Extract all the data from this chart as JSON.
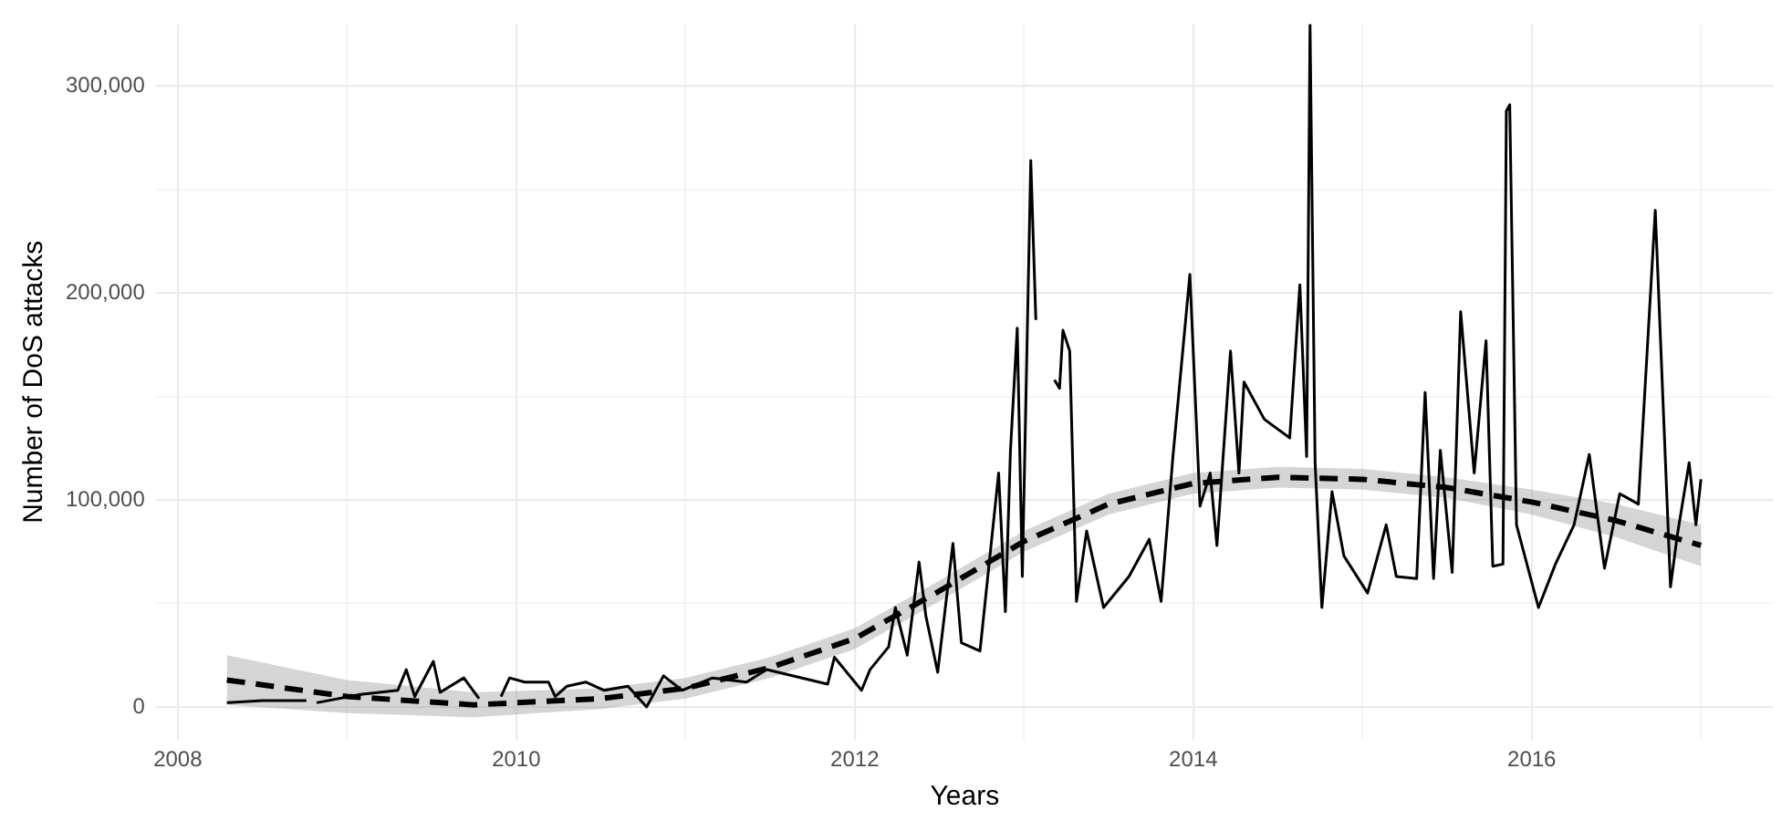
{
  "chart_data": {
    "type": "line",
    "xlabel": "Years",
    "ylabel": "Number of DoS attacks",
    "xlim": [
      2007.87,
      2017.43
    ],
    "ylim": [
      -16000,
      330000
    ],
    "xticks": [
      2008,
      {
        "value": 2009,
        "label": null
      },
      2010,
      {
        "value": 2011,
        "label": null
      },
      2012,
      {
        "value": 2013,
        "label": null
      },
      2014,
      {
        "value": 2015,
        "label": null
      },
      2016,
      {
        "value": 2017,
        "label": null
      }
    ],
    "yticks": [
      {
        "value": 0,
        "label": "0"
      },
      {
        "value": 50000,
        "label": null
      },
      {
        "value": 100000,
        "label": "100,000"
      },
      {
        "value": 150000,
        "label": null
      },
      {
        "value": 200000,
        "label": "200,000"
      },
      {
        "value": 250000,
        "label": null
      },
      {
        "value": 300000,
        "label": "300,000"
      }
    ],
    "grid": true,
    "legend": false,
    "marker": "none",
    "series": [
      {
        "color": "#000000",
        "line_style": "solid",
        "x": [
          2008.29,
          2008.5,
          2008.76,
          2008.79,
          2008.82,
          2009.08,
          2009.3,
          2009.35,
          2009.4,
          2009.51,
          2009.55,
          2009.69,
          2009.78,
          2009.82,
          2009.91,
          2009.96,
          2010.05,
          2010.19,
          2010.23,
          2010.3,
          2010.41,
          2010.52,
          2010.66,
          2010.77,
          2010.87,
          2010.98,
          2011.16,
          2011.36,
          2011.48,
          2011.84,
          2011.88,
          2012.04,
          2012.09,
          2012.2,
          2012.24,
          2012.31,
          2012.38,
          2012.42,
          2012.49,
          2012.58,
          2012.63,
          2012.74,
          2012.85,
          2012.89,
          2012.92,
          2012.96,
          2012.99,
          2013.04,
          2013.07,
          2013.12,
          2013.18,
          2013.21,
          2013.23,
          2013.27,
          2013.31,
          2013.37,
          2013.47,
          2013.62,
          2013.74,
          2013.81,
          2013.88,
          2013.98,
          2014.04,
          2014.1,
          2014.14,
          2014.22,
          2014.27,
          2014.3,
          2014.42,
          2014.57,
          2014.63,
          2014.67,
          2014.69,
          2014.72,
          2014.76,
          2014.82,
          2014.89,
          2015.03,
          2015.14,
          2015.2,
          2015.32,
          2015.37,
          2015.42,
          2015.46,
          2015.53,
          2015.58,
          2015.66,
          2015.73,
          2015.77,
          2015.83,
          2015.85,
          2015.87,
          2015.91,
          2016.04,
          2016.14,
          2016.25,
          2016.34,
          2016.43,
          2016.52,
          2016.63,
          2016.73,
          2016.82,
          2016.86,
          2016.93,
          2016.97,
          2017.0
        ],
        "values": [
          2000,
          3000,
          3000,
          null,
          2000,
          6000,
          8000,
          18000,
          5000,
          22000,
          7000,
          14000,
          4000,
          null,
          5000,
          14000,
          12000,
          12000,
          5000,
          10000,
          12000,
          8000,
          10000,
          0,
          15000,
          8000,
          14000,
          12000,
          18000,
          11000,
          24000,
          8000,
          18000,
          29000,
          48000,
          25000,
          70000,
          44000,
          16700,
          79000,
          31000,
          27000,
          113000,
          46000,
          124000,
          183000,
          63000,
          264000,
          187000,
          null,
          158000,
          154000,
          182000,
          172000,
          51000,
          85000,
          48000,
          63000,
          81000,
          51000,
          121000,
          209000,
          97000,
          113000,
          78000,
          172000,
          113000,
          157000,
          139000,
          130000,
          204000,
          121000,
          330000,
          118000,
          48000,
          104000,
          73000,
          55000,
          88000,
          63000,
          62000,
          152000,
          62000,
          124000,
          65000,
          191000,
          113000,
          177000,
          68000,
          69000,
          288000,
          291000,
          88000,
          48000,
          69000,
          88000,
          122000,
          67000,
          103000,
          98000,
          240000,
          58000,
          83000,
          118000,
          88000,
          110000
        ]
      },
      {
        "color": "#000000",
        "line_style": "dashed",
        "x": [
          2008.29,
          2009.0,
          2009.75,
          2010.5,
          2011.0,
          2011.5,
          2012.0,
          2012.5,
          2013.0,
          2013.5,
          2014.0,
          2014.5,
          2015.0,
          2015.5,
          2016.0,
          2016.5,
          2017.0
        ],
        "values": [
          13000,
          5000,
          1000,
          4000,
          9000,
          19000,
          33000,
          56000,
          80000,
          98000,
          108000,
          111000,
          110000,
          106000,
          99000,
          90000,
          78000
        ],
        "lower": [
          1000,
          -3000,
          -5000,
          -1000,
          4000,
          14000,
          28000,
          51000,
          75000,
          93000,
          103000,
          106000,
          105000,
          101000,
          93000,
          82000,
          68000
        ],
        "upper": [
          25000,
          13000,
          7000,
          9000,
          14000,
          24000,
          38000,
          61000,
          85000,
          103000,
          113000,
          116000,
          115000,
          111000,
          105000,
          98000,
          88000
        ]
      }
    ]
  }
}
